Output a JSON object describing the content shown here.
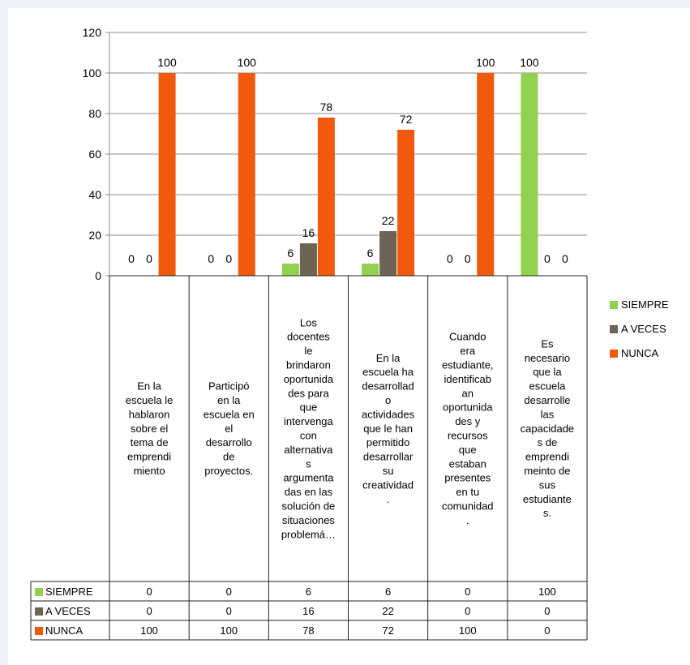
{
  "chart_data": {
    "type": "bar",
    "categories": [
      "En la escuela le hablaron sobre el tema de emprendimiento",
      "Participó en la escuela en el desarrollo de proyectos.",
      "Los docentes le brindaron oportunidades para que intervenga con alternativas argumentadas en las solución de situaciones problemá…",
      "En la escuela ha desarrollado actividades que le han permitido desarrollar su creatividad.",
      "Cuando era estudiante, identificaban oportunidades y recursos que estaban presentes en tu comunidad.",
      "Es necesario que la escuela desarrolle las capacidades de emprendimeinto de sus estudiantes."
    ],
    "category_lines": [
      [
        "En la",
        "escuela le",
        "hablaron",
        "sobre el",
        "tema de",
        "emprendi",
        "miento"
      ],
      [
        "Participó",
        "en la",
        "escuela en",
        "el",
        "desarrollo",
        "de",
        "proyectos."
      ],
      [
        "Los",
        "docentes",
        "le",
        "brindaron",
        "oportunida",
        "des para",
        "que",
        "intervenga",
        "con",
        "alternativa",
        "s",
        "argumenta",
        "das en las",
        "solución de",
        "situaciones",
        "problemá…"
      ],
      [
        "En la",
        "escuela ha",
        "desarrollad",
        "o",
        "actividades",
        "que le han",
        "permitido",
        "desarrollar",
        "su",
        "creatividad",
        "."
      ],
      [
        "Cuando",
        "era",
        "estudiante,",
        "identificab",
        "an",
        "oportunida",
        "des y",
        "recursos",
        "que",
        "estaban",
        "presentes",
        "en tu",
        "comunidad",
        "."
      ],
      [
        "Es",
        "necesario",
        "que la",
        "escuela",
        "desarrolle",
        "las",
        "capacidade",
        "s de",
        "emprendi",
        "meinto de",
        "sus",
        "estudiante",
        "s."
      ]
    ],
    "series": [
      {
        "name": "SIEMPRE",
        "color": "#92d050",
        "values": [
          0,
          0,
          6,
          6,
          0,
          100
        ]
      },
      {
        "name": "A VECES",
        "color": "#6f6453",
        "values": [
          0,
          0,
          16,
          22,
          0,
          0
        ]
      },
      {
        "name": "NUNCA",
        "color": "#f15a0c",
        "values": [
          100,
          100,
          78,
          72,
          100,
          0
        ]
      }
    ],
    "ylim": [
      0,
      120
    ],
    "yticks": [
      0,
      20,
      40,
      60,
      80,
      100,
      120
    ],
    "grid": true,
    "legend_position": "right",
    "data_table": true
  }
}
